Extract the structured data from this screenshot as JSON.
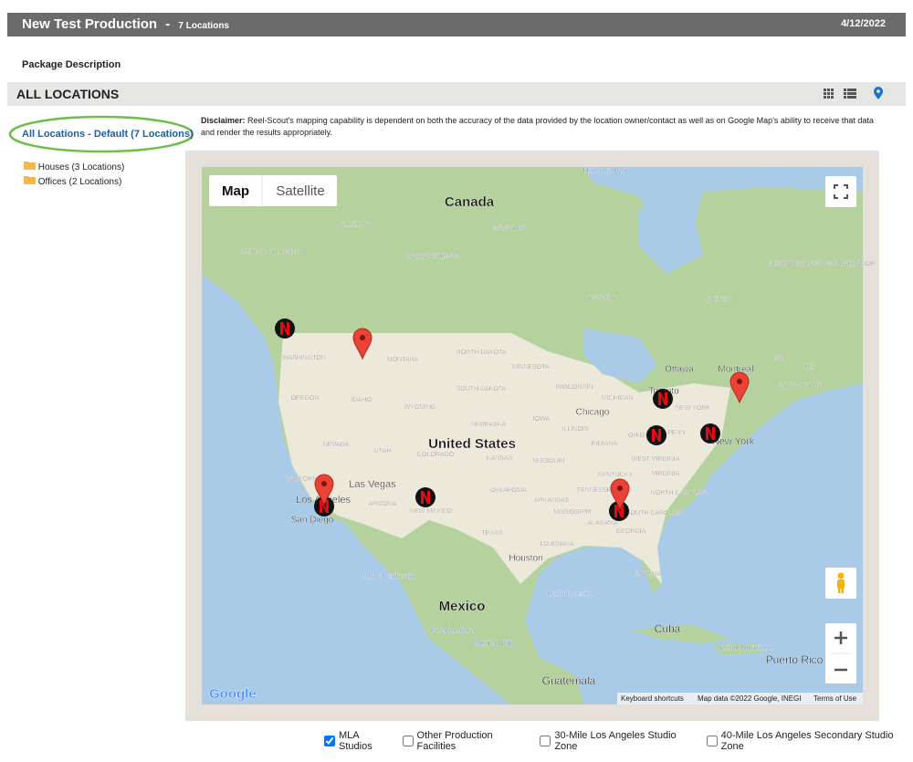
{
  "header": {
    "title": "New Test Production",
    "separator": "-",
    "count": "7 Locations",
    "date": "4/12/2022"
  },
  "package_description": "Package Description",
  "section": {
    "title": "ALL LOCATIONS"
  },
  "sidebar": {
    "default": "All Locations - Default (7 Locations)",
    "folders": [
      "Houses (3 Locations)",
      "Offices (2 Locations)"
    ]
  },
  "disclaimer": {
    "label": "Disclaimer:",
    "text": "Reel-Scout's mapping capability is dependent on both the accuracy of the data provided by the location owner/contact as well as on Google Map's ability to receive that data and render the results appropriately."
  },
  "map": {
    "tabs": [
      "Map",
      "Satellite"
    ],
    "labels": [
      "Hudson Bay",
      "Canada",
      "ALBERTA",
      "MANITOBA",
      "BRITISH COLUMBIA",
      "SASKATCHEWAN",
      "NEWFOUNDLAND AND LABRADOR",
      "ONTARIO",
      "QUEBEC",
      "WASHINGTON",
      "MONTANA",
      "NORTH DAKOTA",
      "MINNESOTA",
      "Ottawa",
      "Montreal",
      "NB",
      "PE",
      "OREGON",
      "IDAHO",
      "WYOMING",
      "SOUTH DAKOTA",
      "WISCONSIN",
      "MICHIGAN",
      "Toronto",
      "NOVA SCOTIA",
      "NEW YORK",
      "Chicago",
      "IOWA",
      "NEBRASKA",
      "ILLINOIS",
      "NEVADA",
      "UTAH",
      "United States",
      "COLORADO",
      "KANSAS",
      "INDIANA",
      "OHIO",
      "PENN",
      "New York",
      "MISSOURI",
      "WEST VIRGINIA",
      "KENTUCKY",
      "VIRGINIA",
      "CALIFORNIA",
      "Las Vegas",
      "Los Angeles",
      "ARIZONA",
      "OKLAHOMA",
      "TENNESSEE",
      "NORTH CAROLINA",
      "ARKANSAS",
      "NEW MEXICO",
      "MISSISSIPPI",
      "SOUTH CAROLINA",
      "San Diego",
      "ALABAMA",
      "GEORGIA",
      "TEXAS",
      "LOUISIANA",
      "Houston",
      "FLORIDA",
      "Gulf of California",
      "Gulf of Mexico",
      "Mexico",
      "Cuba",
      "Guadalajara",
      "Mexico City",
      "Santo Domingo",
      "Puerto Rico",
      "Guatemala"
    ],
    "logo": "Google",
    "footer": [
      "Keyboard shortcuts",
      "Map data ©2022 Google, INEGI",
      "Terms of Use"
    ]
  },
  "filters": [
    {
      "label": "MLA Studios",
      "checked": true
    },
    {
      "label": "Other Production Facilities",
      "checked": false
    },
    {
      "label": "30-Mile Los Angeles Studio Zone",
      "checked": false
    },
    {
      "label": "40-Mile Los Angeles Secondary Studio Zone",
      "checked": false
    }
  ]
}
